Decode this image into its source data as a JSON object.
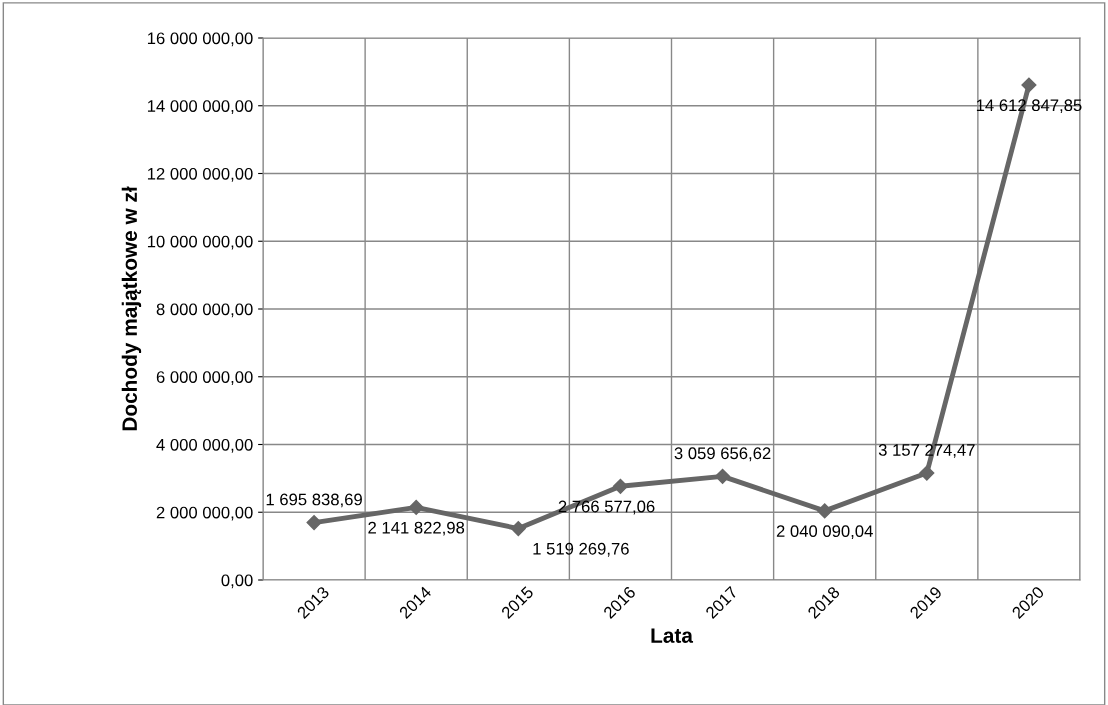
{
  "chart_data": {
    "type": "line",
    "xlabel": "Lata",
    "ylabel": "Dochody majątkowe w zł",
    "categories": [
      "2013",
      "2014",
      "2015",
      "2016",
      "2017",
      "2018",
      "2019",
      "2020"
    ],
    "series": [
      {
        "color": "#666666",
        "values": [
          1695838.69,
          2141822.98,
          1519269.76,
          2766577.06,
          3059656.62,
          2040090.04,
          3157274.47,
          14612847.85
        ],
        "value_labels": [
          "1 695 838,69",
          "2 141 822,98",
          "1 519 269,76",
          "2 766 577,06",
          "3 059 656,62",
          "2 040 090,04",
          "3 157 274,47",
          "14 612 847,85"
        ]
      }
    ],
    "ylim": [
      0,
      16000000
    ],
    "yticks": [
      {
        "value": 0,
        "label": "0,00"
      },
      {
        "value": 2000000,
        "label": "2 000 000,00"
      },
      {
        "value": 4000000,
        "label": "4 000 000,00"
      },
      {
        "value": 6000000,
        "label": "6 000 000,00"
      },
      {
        "value": 8000000,
        "label": "8 000 000,00"
      },
      {
        "value": 10000000,
        "label": "10 000 000,00"
      },
      {
        "value": 12000000,
        "label": "12 000 000,00"
      },
      {
        "value": 14000000,
        "label": "14 000 000,00"
      },
      {
        "value": 16000000,
        "label": "16 000 000,00"
      }
    ],
    "grid": true,
    "marker": "diamond",
    "line_style": "solid",
    "legend": false
  }
}
